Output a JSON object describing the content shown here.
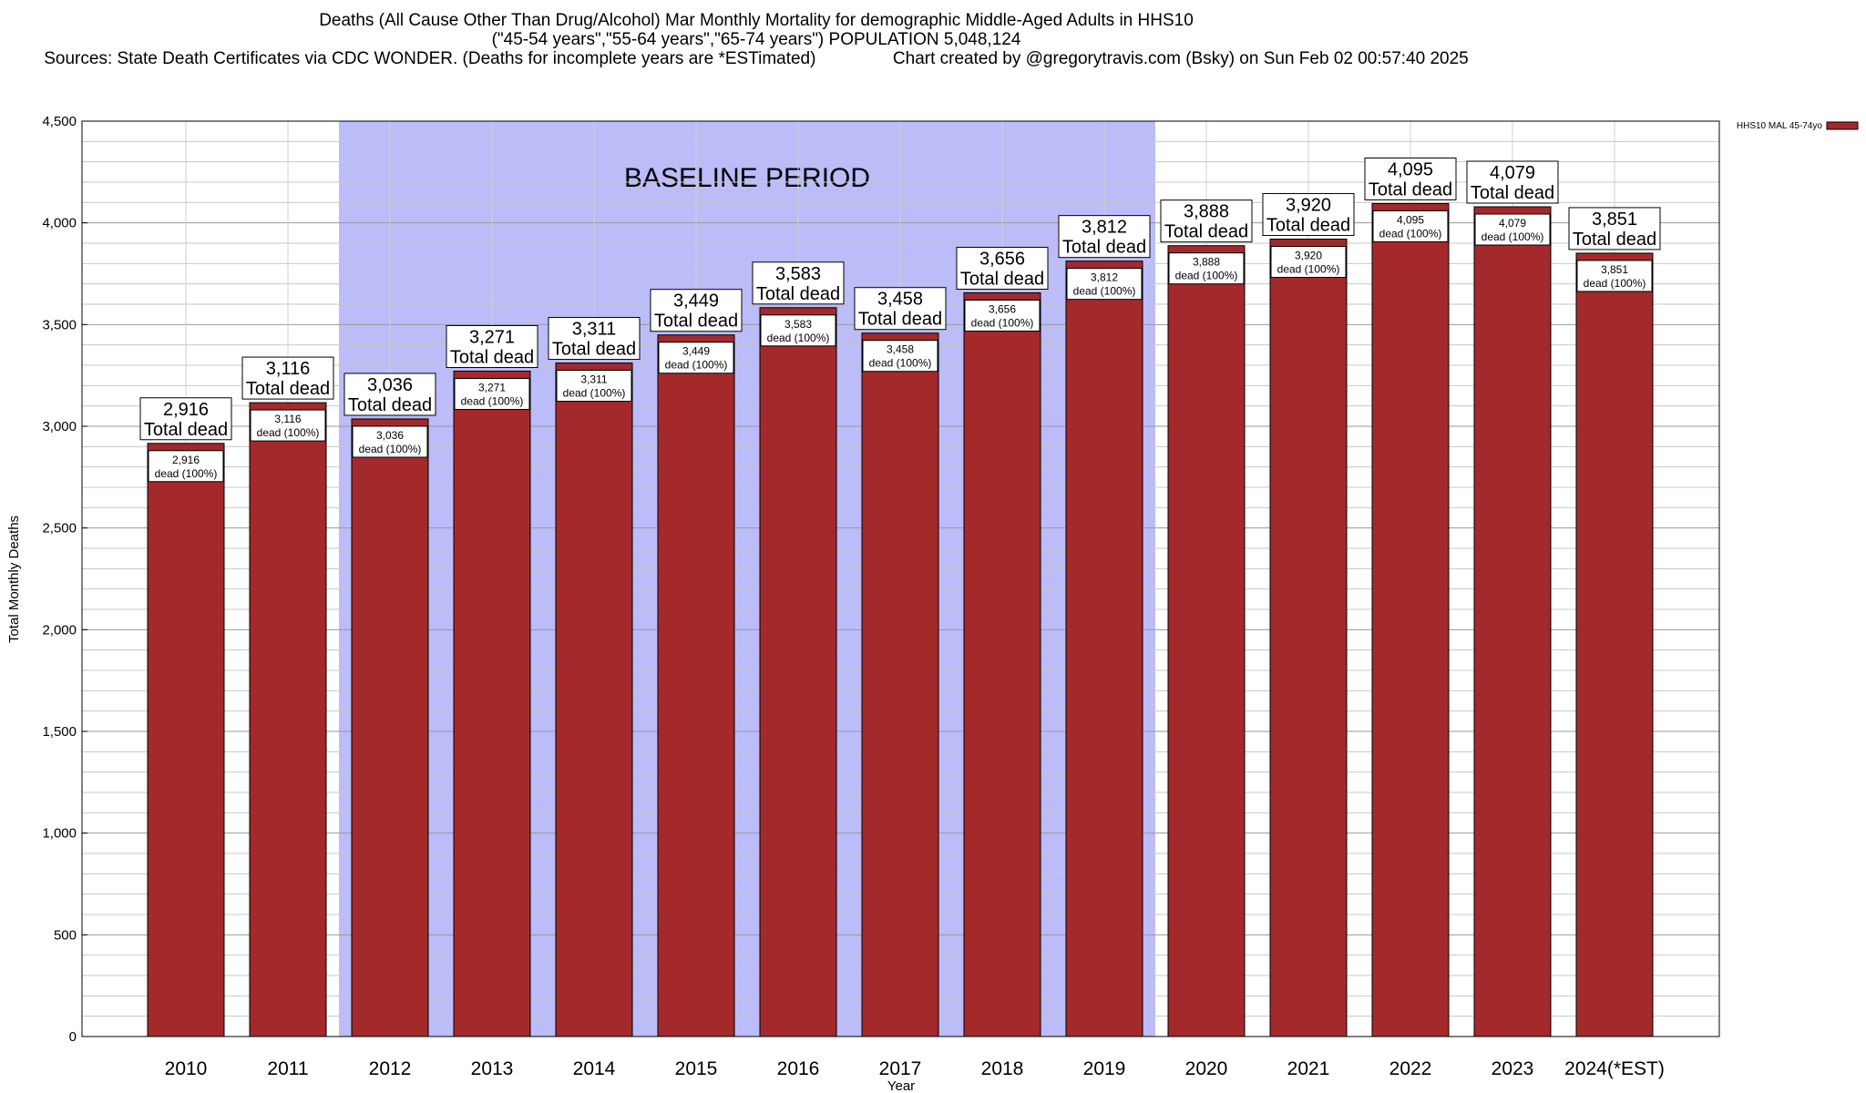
{
  "titles": {
    "line1": "Deaths (All Cause Other Than Drug/Alcohol) Mar Monthly Mortality for demographic Middle-Aged Adults in HHS10",
    "line2": "(\"45-54 years\",\"55-64 years\",\"65-74 years\") POPULATION 5,048,124",
    "line3": "Sources: State Death Certificates via CDC WONDER. (Deaths for incomplete years are *ESTimated)                Chart created by @gregorytravis.com (Bsky) on Sun Feb 02 00:57:40 2025"
  },
  "chart_data": {
    "type": "bar",
    "title": "Deaths (All Cause Other Than Drug/Alcohol) Mar Monthly Mortality for demographic Middle-Aged Adults in HHS10",
    "xlabel": "Year",
    "ylabel": "Total Monthly Deaths",
    "ylim": [
      0,
      4500
    ],
    "yticks": [
      0,
      500,
      1000,
      1500,
      2000,
      2500,
      3000,
      3500,
      4000,
      4500
    ],
    "ytick_labels": [
      "0",
      "500",
      "1,000",
      "1,500",
      "2,000",
      "2,500",
      "3,000",
      "3,500",
      "4,000",
      "4,500"
    ],
    "grid": true,
    "legend_position": "top-right",
    "categories": [
      "2010",
      "2011",
      "2012",
      "2013",
      "2014",
      "2015",
      "2016",
      "2017",
      "2018",
      "2019",
      "2020",
      "2021",
      "2022",
      "2023",
      "2024(*EST)"
    ],
    "series": [
      {
        "name": "HHS10 MAL 45-74yo",
        "color": "#a3292b",
        "values": [
          2916,
          3116,
          3036,
          3271,
          3311,
          3449,
          3583,
          3458,
          3656,
          3812,
          3888,
          3920,
          4095,
          4079,
          3851
        ]
      }
    ],
    "value_labels": [
      "2,916",
      "3,116",
      "3,036",
      "3,271",
      "3,311",
      "3,449",
      "3,583",
      "3,458",
      "3,656",
      "3,812",
      "3,888",
      "3,920",
      "4,095",
      "4,079",
      "3,851"
    ],
    "top_label_suffix": "Total dead",
    "inner_label_suffix": "dead (100%)",
    "annotations": [
      {
        "text": "BASELINE PERIOD",
        "start_category": "2012",
        "end_category": "2019",
        "color": "#bbbcf8"
      }
    ]
  }
}
